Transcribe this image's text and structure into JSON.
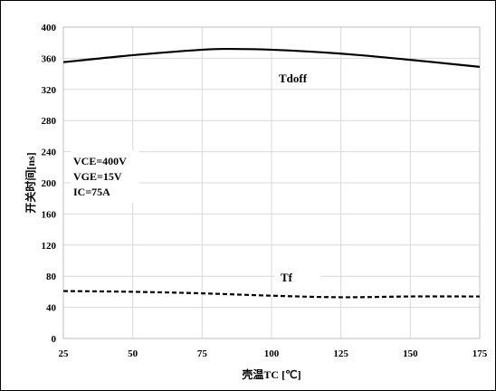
{
  "chart_data": {
    "type": "line",
    "xlabel": "壳温TC [℃]",
    "ylabel": "开关时间[ns]",
    "xlim": [
      25,
      175
    ],
    "ylim": [
      0,
      400
    ],
    "x_ticks": [
      25,
      50,
      75,
      100,
      125,
      150,
      175
    ],
    "y_ticks": [
      0,
      40,
      80,
      120,
      160,
      200,
      240,
      280,
      320,
      360,
      400
    ],
    "grid": true,
    "annotations": [
      "VCE=400V",
      "VGE=15V",
      "IC=75A"
    ],
    "series": [
      {
        "name": "Tdoff",
        "style": "solid",
        "color": "#000000",
        "x": [
          25,
          50,
          75,
          85,
          100,
          125,
          150,
          175
        ],
        "y": [
          355,
          364,
          371,
          372,
          371,
          366,
          358,
          349
        ]
      },
      {
        "name": "Tf",
        "style": "dashed",
        "color": "#000000",
        "x": [
          25,
          50,
          75,
          100,
          125,
          150,
          175
        ],
        "y": [
          61,
          60,
          58,
          55,
          53,
          54,
          54
        ]
      }
    ]
  }
}
